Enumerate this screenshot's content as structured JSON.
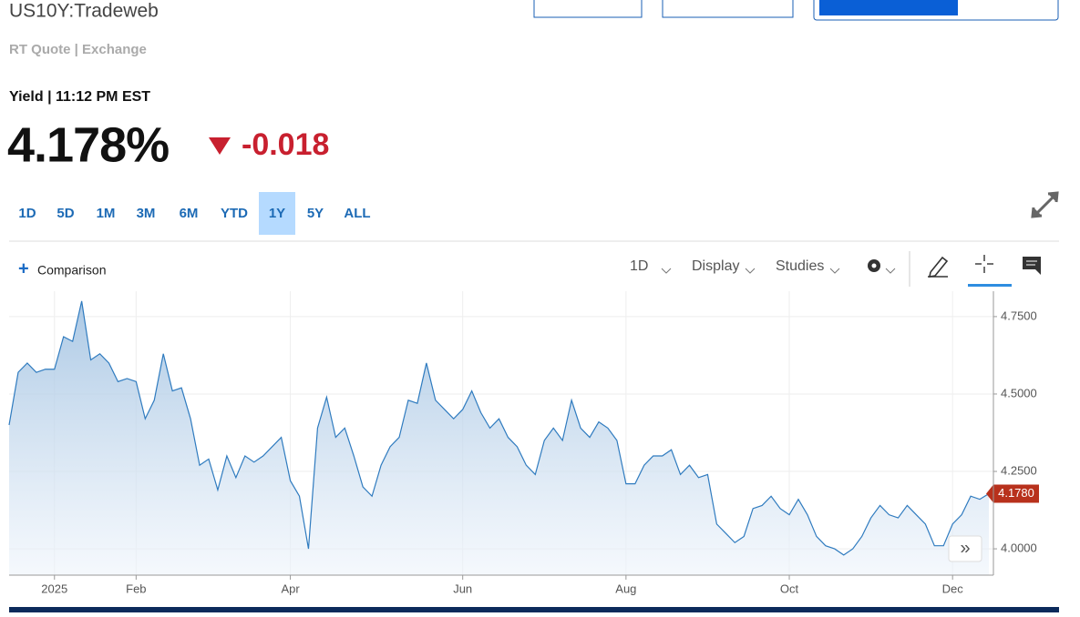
{
  "header": {
    "title": "US10Y:Tradeweb",
    "subtitle": "RT Quote | Exchange",
    "yield_label": "Yield | 11:12 PM EST",
    "price": "4.178%",
    "change": "-0.018"
  },
  "ranges": {
    "items": [
      "1D",
      "5D",
      "1M",
      "3M",
      "6M",
      "YTD",
      "1Y",
      "5Y",
      "ALL"
    ],
    "selected": 6
  },
  "toolbar": {
    "comparison": "Comparison",
    "interval": "1D",
    "display": "Display",
    "studies": "Studies"
  },
  "chart_data": {
    "type": "line",
    "categories": [
      null,
      null,
      null,
      null,
      null,
      "2025",
      null,
      null,
      null,
      null,
      null,
      null,
      null,
      null,
      "Feb",
      null,
      null,
      null,
      null,
      null,
      null,
      null,
      null,
      null,
      null,
      null,
      null,
      null,
      null,
      null,
      null,
      "Apr",
      null,
      null,
      null,
      null,
      null,
      null,
      null,
      null,
      null,
      null,
      null,
      null,
      null,
      null,
      null,
      null,
      null,
      null,
      "Jun",
      null,
      null,
      null,
      null,
      null,
      null,
      null,
      null,
      null,
      null,
      null,
      null,
      null,
      null,
      null,
      null,
      null,
      "Aug",
      null,
      null,
      null,
      null,
      null,
      null,
      null,
      null,
      null,
      null,
      null,
      null,
      null,
      null,
      null,
      null,
      null,
      "Oct",
      null,
      null,
      null,
      null,
      null,
      null,
      null,
      null,
      null,
      null,
      null,
      null,
      null,
      null,
      null,
      null,
      null,
      "Dec",
      null,
      null,
      null,
      null
    ],
    "values": [
      4.4,
      4.57,
      4.6,
      4.57,
      4.58,
      4.58,
      4.685,
      4.67,
      4.8,
      4.61,
      4.63,
      4.6,
      4.54,
      4.55,
      4.54,
      4.42,
      4.48,
      4.63,
      4.51,
      4.52,
      4.42,
      4.27,
      4.29,
      4.19,
      4.3,
      4.23,
      4.3,
      4.28,
      4.3,
      4.33,
      4.36,
      4.22,
      4.17,
      4.0,
      4.39,
      4.49,
      4.36,
      4.39,
      4.3,
      4.2,
      4.17,
      4.27,
      4.33,
      4.36,
      4.48,
      4.47,
      4.6,
      4.48,
      4.45,
      4.42,
      4.45,
      4.51,
      4.44,
      4.39,
      4.42,
      4.36,
      4.33,
      4.27,
      4.24,
      4.35,
      4.39,
      4.35,
      4.48,
      4.39,
      4.36,
      4.41,
      4.39,
      4.35,
      4.21,
      4.21,
      4.27,
      4.3,
      4.3,
      4.32,
      4.24,
      4.27,
      4.23,
      4.24,
      4.08,
      4.05,
      4.02,
      4.04,
      4.13,
      4.14,
      4.17,
      4.13,
      4.11,
      4.16,
      4.11,
      4.04,
      4.01,
      4.0,
      3.98,
      4.0,
      4.04,
      4.1,
      4.14,
      4.11,
      4.1,
      4.14,
      4.11,
      4.08,
      4.01,
      4.01,
      4.08,
      4.11,
      4.17,
      4.16,
      4.178
    ],
    "value_labels": [
      null,
      null,
      null,
      null,
      null,
      null,
      null,
      null,
      null,
      null,
      null,
      null,
      null,
      null,
      null,
      null,
      null,
      null,
      null,
      null,
      null,
      null,
      null,
      null,
      null,
      null,
      null,
      null,
      null,
      null,
      null,
      null,
      null,
      null,
      null,
      null,
      null,
      null,
      null,
      null,
      null,
      null,
      null,
      null,
      null,
      null,
      null,
      null,
      null,
      null,
      null,
      null,
      null,
      null,
      null,
      null,
      null,
      null,
      null,
      null,
      null,
      null,
      null,
      null,
      null,
      null,
      null,
      null,
      null,
      null,
      null,
      null,
      null,
      null,
      null,
      null,
      null,
      null,
      null,
      null,
      null,
      null,
      null,
      null,
      null,
      null,
      null,
      null,
      null,
      null,
      null,
      null,
      null,
      null,
      null,
      null,
      null,
      null,
      null,
      null,
      null,
      null,
      null,
      null,
      null,
      null,
      null,
      null,
      "4.1780"
    ],
    "color": "#2f7bbf",
    "ylim": [
      3.915,
      4.832
    ],
    "yticks": [
      {
        "value": 4.0,
        "label": "4.0000"
      },
      {
        "value": 4.25,
        "label": "4.2500"
      },
      {
        "value": 4.5,
        "label": "4.5000"
      },
      {
        "value": 4.75,
        "label": "4.7500"
      }
    ],
    "grid": true
  }
}
